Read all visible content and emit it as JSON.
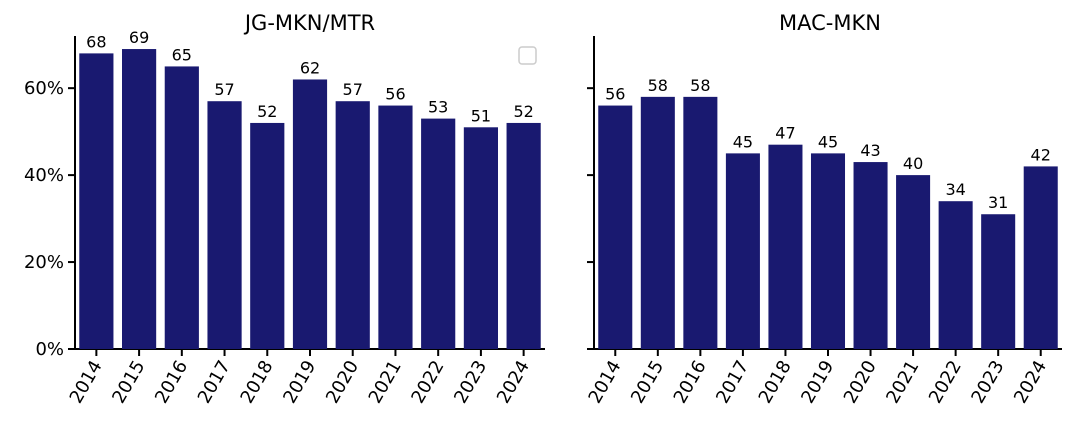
{
  "chart_data": [
    {
      "type": "bar",
      "title": "JG-MKN/MTR",
      "categories": [
        "2014",
        "2015",
        "2016",
        "2017",
        "2018",
        "2019",
        "2020",
        "2021",
        "2022",
        "2023",
        "2024"
      ],
      "values": [
        68,
        69,
        65,
        57,
        52,
        62,
        57,
        56,
        53,
        51,
        52
      ],
      "data_labels": [
        "68",
        "69",
        "65",
        "57",
        "52",
        "62",
        "57",
        "56",
        "53",
        "51",
        "52"
      ],
      "ylim": [
        0,
        72
      ],
      "yticks": [
        0,
        20,
        40,
        60
      ],
      "ytick_labels": [
        "0%",
        "20%",
        "40%",
        "60%"
      ],
      "xlabel": "",
      "ylabel": "",
      "bar_color": "#191970",
      "grid": false,
      "legend": {
        "placement": "top-right",
        "entries": []
      }
    },
    {
      "type": "bar",
      "title": "MAC-MKN",
      "categories": [
        "2014",
        "2015",
        "2016",
        "2017",
        "2018",
        "2019",
        "2020",
        "2021",
        "2022",
        "2023",
        "2024"
      ],
      "values": [
        56,
        58,
        58,
        45,
        47,
        45,
        43,
        40,
        34,
        31,
        42
      ],
      "data_labels": [
        "56",
        "58",
        "58",
        "45",
        "47",
        "45",
        "43",
        "40",
        "34",
        "31",
        "42"
      ],
      "ylim": [
        0,
        72
      ],
      "yticks": [
        0,
        20,
        40,
        60
      ],
      "ytick_labels": [
        "",
        "",
        "",
        ""
      ],
      "xlabel": "",
      "ylabel": "",
      "bar_color": "#191970",
      "grid": false
    }
  ]
}
